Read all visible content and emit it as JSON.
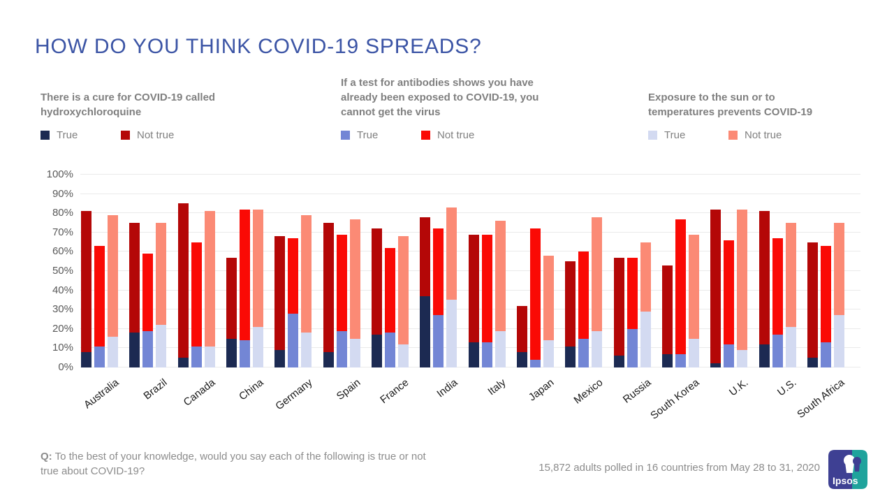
{
  "title": "HOW DO YOU THINK COVID-19 SPREADS?",
  "panels": [
    {
      "title": "There is a cure for COVID-19 called hydroxychloroquine",
      "legend_true": "True",
      "legend_not_true": "Not true",
      "color_true": "#1C2A52",
      "color_not_true": "#B40707"
    },
    {
      "title": "If a test for antibodies shows you have already been exposed to COVID-19, you cannot get the virus",
      "legend_true": "True",
      "legend_not_true": "Not true",
      "color_true": "#7386D5",
      "color_not_true": "#FA0A05"
    },
    {
      "title": "Exposure to the sun or to temperatures prevents COVID-19",
      "legend_true": "True",
      "legend_not_true": "Not true",
      "color_true": "#D3DAF1",
      "color_not_true": "#FB8A75"
    }
  ],
  "footer": {
    "question_prefix": "Q:",
    "question_text": " To the best of your knowledge, would you say each of the following is true or not true about COVID-19?",
    "sample_note": "15,872 adults polled in 16 countries from May 28 to 31, 2020",
    "logo": {
      "text": "Ipsos",
      "blue": "#3E4093",
      "teal": "#1FA39C"
    }
  },
  "chart_data": {
    "type": "bar",
    "stacked": true,
    "grid": true,
    "legend_position": "top-per-question",
    "ylim": [
      0,
      100
    ],
    "ytick_labels": [
      "0%",
      "10%",
      "20%",
      "30%",
      "40%",
      "50%",
      "60%",
      "70%",
      "80%",
      "90%",
      "100%"
    ],
    "categories": [
      "Australia",
      "Brazil",
      "Canada",
      "China",
      "Germany",
      "Spain",
      "France",
      "India",
      "Italy",
      "Japan",
      "Mexico",
      "Russia",
      "South Korea",
      "U.K.",
      "U.S.",
      "South Africa"
    ],
    "series": [
      {
        "question": "There is a cure for COVID-19 called hydroxychloroquine",
        "colors": {
          "true": "#1C2A52",
          "not_true": "#B40707"
        },
        "true": [
          8,
          18,
          5,
          15,
          9,
          8,
          17,
          37,
          13,
          8,
          11,
          6,
          7,
          2,
          12,
          5
        ],
        "not_true": [
          73,
          57,
          80,
          42,
          59,
          67,
          55,
          41,
          56,
          24,
          44,
          51,
          46,
          80,
          69,
          60
        ]
      },
      {
        "question": "If a test for antibodies shows you have already been exposed to COVID-19, you cannot get the virus",
        "colors": {
          "true": "#7386D5",
          "not_true": "#FA0A05"
        },
        "true": [
          11,
          19,
          11,
          14,
          28,
          19,
          18,
          27,
          13,
          4,
          15,
          20,
          7,
          12,
          17,
          13
        ],
        "not_true": [
          52,
          40,
          54,
          68,
          39,
          50,
          44,
          45,
          56,
          68,
          45,
          37,
          70,
          54,
          50,
          50
        ]
      },
      {
        "question": "Exposure to the sun or to temperatures prevents COVID-19",
        "colors": {
          "true": "#D3DAF1",
          "not_true": "#FB8A75"
        },
        "true": [
          16,
          22,
          11,
          21,
          18,
          15,
          12,
          35,
          19,
          14,
          19,
          29,
          15,
          9,
          21,
          27
        ],
        "not_true": [
          63,
          53,
          70,
          61,
          61,
          62,
          56,
          48,
          57,
          44,
          59,
          36,
          54,
          73,
          54,
          48
        ]
      }
    ]
  }
}
